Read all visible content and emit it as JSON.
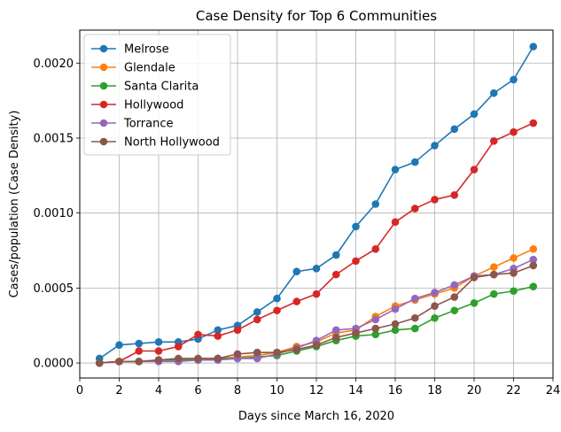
{
  "chart_data": {
    "type": "line",
    "title": "Case Density for Top 6 Communities",
    "xlabel": "Days since March 16, 2020",
    "ylabel": "Cases/population (Case Density)",
    "xlim": [
      0,
      24
    ],
    "ylim": [
      -0.0001,
      0.00222
    ],
    "xticks": [
      0,
      2,
      4,
      6,
      8,
      10,
      12,
      14,
      16,
      18,
      20,
      22,
      24
    ],
    "yticks": [
      0.0,
      0.0005,
      0.001,
      0.0015,
      0.002
    ],
    "ytick_labels": [
      "0.0000",
      "0.0005",
      "0.0010",
      "0.0015",
      "0.0020"
    ],
    "grid": true,
    "legend_position": "top-left",
    "marker": "circle",
    "x": [
      1,
      2,
      3,
      4,
      5,
      6,
      7,
      8,
      9,
      10,
      11,
      12,
      13,
      14,
      15,
      16,
      17,
      18,
      19,
      20,
      21,
      22,
      23
    ],
    "series": [
      {
        "name": "Melrose",
        "color": "#1f77b4",
        "values": [
          3e-05,
          0.00012,
          0.00013,
          0.00014,
          0.00014,
          0.00016,
          0.00022,
          0.00025,
          0.00034,
          0.00043,
          0.00061,
          0.00063,
          0.00072,
          0.00091,
          0.00106,
          0.00129,
          0.00134,
          0.00145,
          0.00156,
          0.00166,
          0.0018,
          0.00189,
          0.00211
        ]
      },
      {
        "name": "Glendale",
        "color": "#ff7f0e",
        "values": [
          0.0,
          1e-05,
          1e-05,
          2e-05,
          2e-05,
          3e-05,
          3e-05,
          4e-05,
          5e-05,
          7e-05,
          0.00011,
          0.00014,
          0.0002,
          0.00022,
          0.00031,
          0.00038,
          0.00042,
          0.00046,
          0.0005,
          0.00058,
          0.00064,
          0.0007,
          0.00076
        ]
      },
      {
        "name": "Santa Clarita",
        "color": "#2ca02c",
        "values": [
          0.0,
          1e-05,
          1e-05,
          2e-05,
          2e-05,
          2e-05,
          3e-05,
          3e-05,
          4e-05,
          5e-05,
          8e-05,
          0.00011,
          0.00015,
          0.00018,
          0.00019,
          0.00022,
          0.00023,
          0.0003,
          0.00035,
          0.0004,
          0.00046,
          0.00048,
          0.00051
        ]
      },
      {
        "name": "Hollywood",
        "color": "#d62728",
        "values": [
          0.0,
          1e-05,
          8e-05,
          8e-05,
          0.00011,
          0.00019,
          0.00018,
          0.00022,
          0.00029,
          0.00035,
          0.00041,
          0.00046,
          0.00059,
          0.00068,
          0.00076,
          0.00094,
          0.00103,
          0.00109,
          0.00112,
          0.00129,
          0.00148,
          0.00154,
          0.0016
        ]
      },
      {
        "name": "Torrance",
        "color": "#9467bd",
        "values": [
          0.0,
          1e-05,
          1e-05,
          1e-05,
          1e-05,
          2e-05,
          2e-05,
          3e-05,
          3e-05,
          6e-05,
          0.0001,
          0.00015,
          0.00022,
          0.00023,
          0.00029,
          0.00036,
          0.00043,
          0.00047,
          0.00052,
          0.00058,
          0.00059,
          0.00063,
          0.00069
        ]
      },
      {
        "name": "North Hollywood",
        "color": "#8c564b",
        "values": [
          0.0,
          1e-05,
          1e-05,
          2e-05,
          3e-05,
          3e-05,
          3e-05,
          6e-05,
          7e-05,
          7e-05,
          9e-05,
          0.00012,
          0.00017,
          0.0002,
          0.00023,
          0.00026,
          0.0003,
          0.00038,
          0.00044,
          0.00057,
          0.00059,
          0.0006,
          0.00065
        ]
      }
    ]
  }
}
